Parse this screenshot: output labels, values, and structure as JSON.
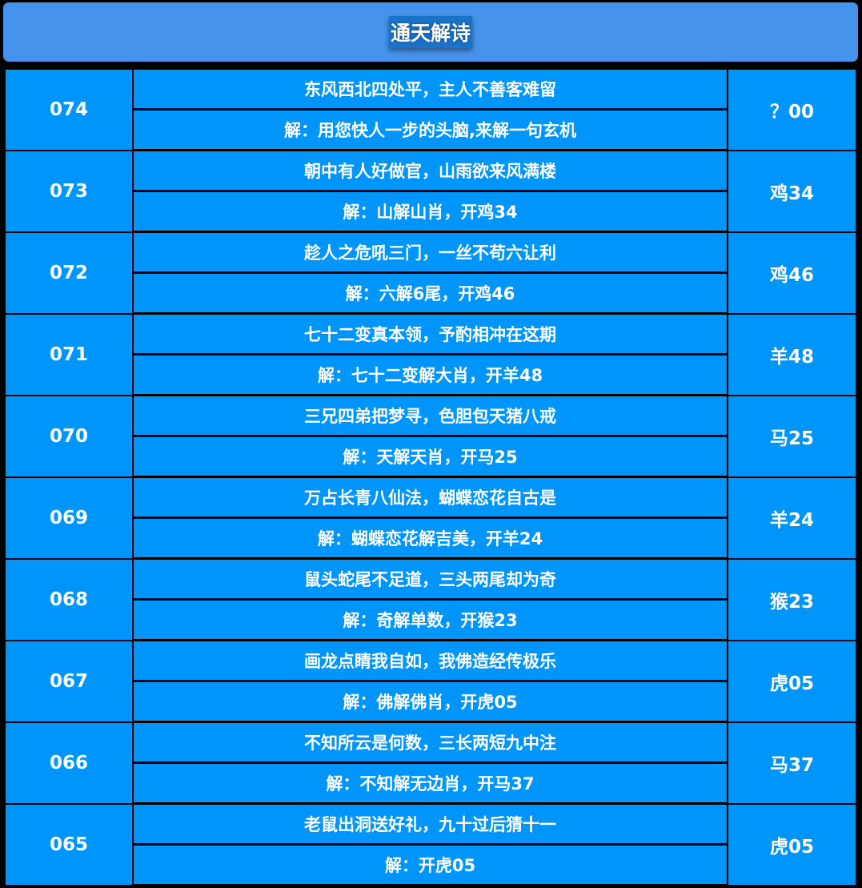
{
  "header": {
    "title": "通天解诗"
  },
  "rows": [
    {
      "issue": "074",
      "poem": "东风西北四处平，主人不善客难留",
      "solution": "解：用您快人一步的头脑,来解一句玄机",
      "result": "？00"
    },
    {
      "issue": "073",
      "poem": "朝中有人好做官，山雨欲来风满楼",
      "solution": "解：山解山肖，开鸡34",
      "result": "鸡34"
    },
    {
      "issue": "072",
      "poem": "趁人之危吼三门，一丝不苟六让利",
      "solution": "解：六解6尾，开鸡46",
      "result": "鸡46"
    },
    {
      "issue": "071",
      "poem": "七十二变真本领，予酌相冲在这期",
      "solution": "解：七十二变解大肖，开羊48",
      "result": "羊48"
    },
    {
      "issue": "070",
      "poem": "三兄四弟把梦寻，色胆包天猪八戒",
      "solution": "解：天解天肖，开马25",
      "result": "马25"
    },
    {
      "issue": "069",
      "poem": "万占长青八仙法，蝴蝶恋花自古是",
      "solution": "解：蝴蝶恋花解吉美，开羊24",
      "result": "羊24"
    },
    {
      "issue": "068",
      "poem": "鼠头蛇尾不足道，三头两尾却为奇",
      "solution": "解：奇解单数，开猴23",
      "result": "猴23"
    },
    {
      "issue": "067",
      "poem": "画龙点睛我自如，我佛造经传极乐",
      "solution": "解：佛解佛肖，开虎05",
      "result": "虎05"
    },
    {
      "issue": "066",
      "poem": "不知所云是何数，三长两短九中注",
      "solution": "解：不知解无边肖，开马37",
      "result": "马37"
    },
    {
      "issue": "065",
      "poem": "老鼠出洞送好礼，九十过后猜十一",
      "solution": "解：开虎05",
      "result": "虎05"
    }
  ]
}
